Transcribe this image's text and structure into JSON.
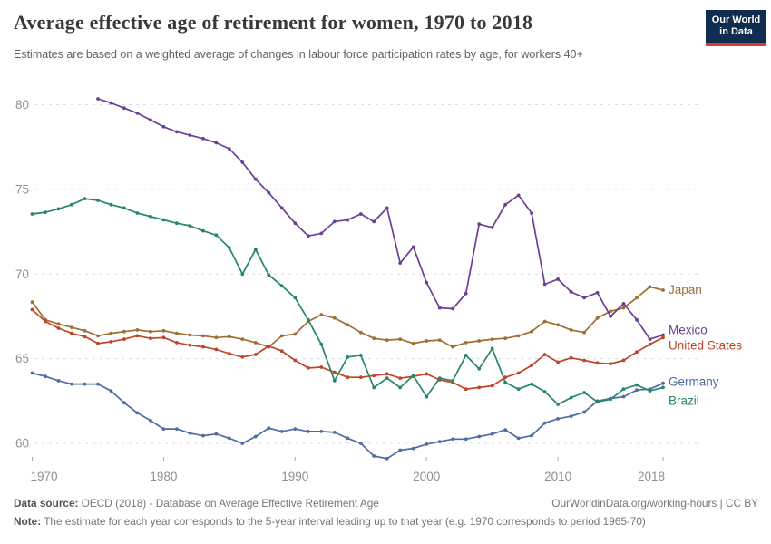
{
  "header": {
    "title": "Average effective age of retirement for women, 1970 to 2018",
    "subtitle": "Estimates are based on a weighted average of changes in labour force participation rates by age, for workers 40+",
    "logo": {
      "line1": "Our World",
      "line2": "in Data",
      "bg_color": "#102d50",
      "stripe_color": "#d73a35"
    }
  },
  "footer": {
    "source_label": "Data source:",
    "source_text": " OECD (2018) - Database on Average Effective Retirement Age",
    "credit": "OurWorldinData.org/working-hours | CC BY",
    "note_label": "Note:",
    "note_text": " The estimate for each year corresponds to the 5-year interval leading up to that year (e.g. 1970 corresponds to period 1965-70)"
  },
  "chart_data": {
    "type": "line",
    "title": "Average effective age of retirement for women, 1970 to 2018",
    "xlabel": "",
    "ylabel": "",
    "xlim": [
      1970,
      2018
    ],
    "ylim": [
      59,
      81
    ],
    "x_ticks": [
      1970,
      1980,
      1990,
      2000,
      2010,
      2018
    ],
    "y_ticks": [
      60,
      65,
      70,
      75,
      80
    ],
    "grid": "horizontal-dashed",
    "legend_position": "right-end-labels",
    "axis_text_color": "#8f8f8f",
    "grid_color": "#dcdcdc",
    "series": [
      {
        "name": "Japan",
        "color": "#9d6f34",
        "start_year": 1970,
        "values": [
          68.35,
          67.3,
          67.05,
          66.85,
          66.65,
          66.35,
          66.5,
          66.6,
          66.7,
          66.6,
          66.65,
          66.5,
          66.4,
          66.35,
          66.25,
          66.3,
          66.15,
          65.95,
          65.7,
          66.35,
          66.45,
          67.2,
          67.6,
          67.4,
          67.0,
          66.55,
          66.2,
          66.1,
          66.15,
          65.9,
          66.05,
          66.1,
          65.7,
          65.95,
          66.05,
          66.15,
          66.2,
          66.35,
          66.6,
          67.2,
          67.0,
          66.7,
          66.55,
          67.4,
          67.8,
          68.0,
          68.6,
          69.25,
          69.05
        ]
      },
      {
        "name": "Mexico",
        "color": "#6d3e91",
        "start_year": 1975,
        "values": [
          80.35,
          80.1,
          79.8,
          79.5,
          79.1,
          78.7,
          78.4,
          78.2,
          78.0,
          77.75,
          77.4,
          76.6,
          75.6,
          74.8,
          73.9,
          73.0,
          72.25,
          72.4,
          73.1,
          73.2,
          73.55,
          73.1,
          73.9,
          70.65,
          71.6,
          69.5,
          68.0,
          67.95,
          68.85,
          72.95,
          72.75,
          74.1,
          74.65,
          73.6,
          69.4,
          69.7,
          68.95,
          68.6,
          68.9,
          67.5,
          68.25,
          67.3,
          66.15,
          66.4
        ]
      },
      {
        "name": "United States",
        "color": "#bf4428",
        "start_year": 1970,
        "values": [
          67.9,
          67.2,
          66.8,
          66.5,
          66.3,
          65.9,
          66.0,
          66.15,
          66.35,
          66.2,
          66.25,
          65.95,
          65.8,
          65.7,
          65.55,
          65.3,
          65.1,
          65.25,
          65.75,
          65.45,
          64.9,
          64.45,
          64.5,
          64.2,
          63.9,
          63.9,
          64.0,
          64.1,
          63.85,
          63.95,
          64.1,
          63.75,
          63.6,
          63.2,
          63.3,
          63.4,
          63.9,
          64.15,
          64.6,
          65.25,
          64.8,
          65.05,
          64.9,
          64.75,
          64.7,
          64.9,
          65.4,
          65.85,
          66.25
        ]
      },
      {
        "name": "Germany",
        "color": "#4d6ca3",
        "start_year": 1970,
        "values": [
          64.15,
          63.95,
          63.7,
          63.5,
          63.5,
          63.5,
          63.1,
          62.4,
          61.8,
          61.35,
          60.85,
          60.85,
          60.6,
          60.45,
          60.55,
          60.3,
          60.0,
          60.4,
          60.9,
          60.7,
          60.85,
          60.7,
          60.7,
          60.65,
          60.3,
          60.0,
          59.25,
          59.1,
          59.6,
          59.7,
          59.95,
          60.1,
          60.25,
          60.25,
          60.4,
          60.55,
          60.8,
          60.3,
          60.45,
          61.2,
          61.45,
          61.6,
          61.85,
          62.5,
          62.65,
          62.75,
          63.15,
          63.2,
          63.55
        ]
      },
      {
        "name": "Brazil",
        "color": "#278668",
        "start_year": 1970,
        "values": [
          73.55,
          73.65,
          73.85,
          74.1,
          74.45,
          74.35,
          74.1,
          73.9,
          73.6,
          73.4,
          73.2,
          73.0,
          72.85,
          72.55,
          72.3,
          71.55,
          70.0,
          71.45,
          69.95,
          69.3,
          68.6,
          67.3,
          65.85,
          63.7,
          65.1,
          65.2,
          63.3,
          63.85,
          63.3,
          64.0,
          62.75,
          63.85,
          63.7,
          65.2,
          64.4,
          65.6,
          63.6,
          63.2,
          63.5,
          63.05,
          62.3,
          62.7,
          63.0,
          62.45,
          62.6,
          63.2,
          63.45,
          63.1,
          63.3
        ]
      }
    ]
  }
}
